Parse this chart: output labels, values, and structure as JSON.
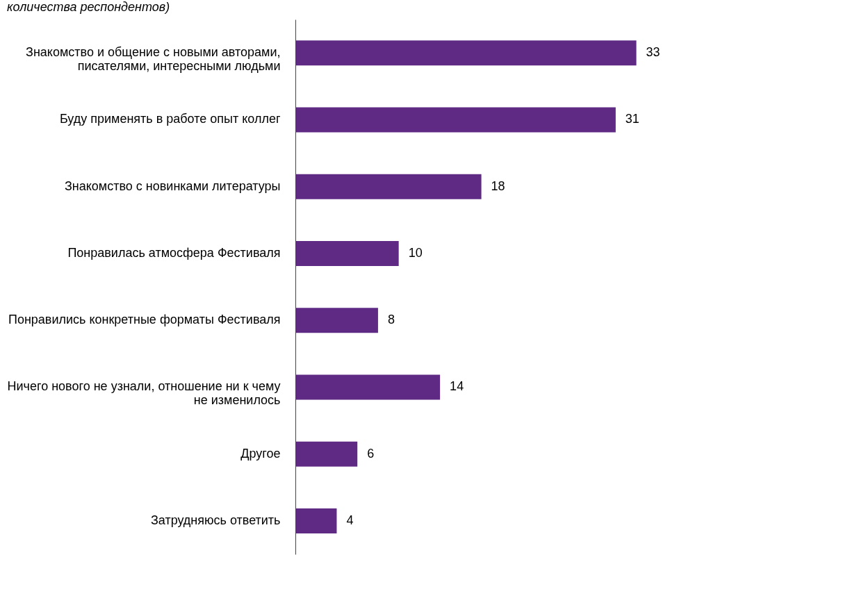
{
  "chart_data": {
    "type": "bar",
    "orientation": "horizontal",
    "title": "количества респондентов)",
    "categories": [
      "Знакомство и общение с новыми авторами, писателями, интересными людьми",
      "Буду применять в работе опыт коллег",
      "Знакомство с новинками литературы",
      "Понравилась атмосфера Фестиваля",
      "Понравились конкретные форматы Фестиваля",
      "Ничего нового не узнали, отношение ни к чему не изменилось",
      "Другое",
      "Затрудняюсь ответить"
    ],
    "values": [
      33,
      31,
      18,
      10,
      8,
      14,
      6,
      4
    ],
    "color": "#5f2a84",
    "data_labels": true
  }
}
